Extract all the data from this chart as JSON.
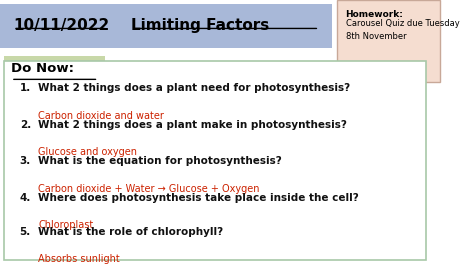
{
  "title_date": "10/11/2022",
  "title_main": "Limiting Factors",
  "title_bg": "#a8b8d8",
  "do_now_text": "Do Now:",
  "do_now_bg": "#c8d8a8",
  "hw_title": "Homework:",
  "hw_body": "Carousel Quiz due Tuesday\n8th November",
  "hw_bg": "#f5ddd0",
  "hw_border": "#c8a898",
  "main_border": "#a8c8a8",
  "bg_color": "#ffffff",
  "questions": [
    "What 2 things does a plant need for photosynthesis?",
    "What 2 things does a plant make in photosynthesis?",
    "What is the equation for photosynthesis?",
    "Where does photosynthesis take place inside the cell?",
    "What is the role of chlorophyll?"
  ],
  "answers": [
    "Carbon dioxide and water",
    "Glucose and oxygen",
    "Carbon dioxide + Water → Glucose + Oxygen",
    "Chloroplast",
    "Absorbs sunlight"
  ],
  "q_color": "#111111",
  "a_color": "#cc2200",
  "q_fontsize": 7.5,
  "a_fontsize": 7.0,
  "title_fontsize": 11.0,
  "do_now_fontsize": 9.5
}
